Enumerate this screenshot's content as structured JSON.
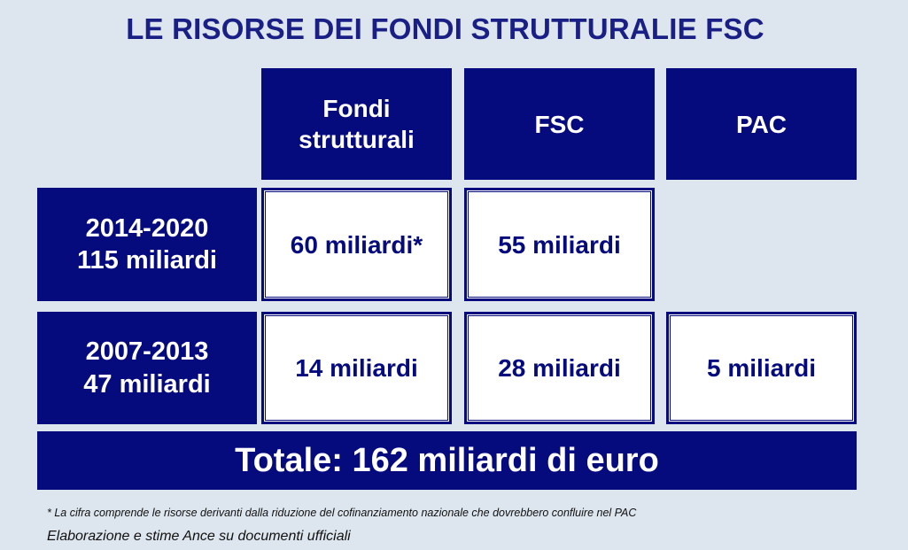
{
  "title": "LE RISORSE DEI FONDI STRUTTURALIE FSC",
  "columns": {
    "fondi_line1": "Fondi",
    "fondi_line2": "strutturali",
    "fsc": "FSC",
    "pac": "PAC"
  },
  "rows": [
    {
      "period": "2014-2020",
      "period_total": "115 miliardi",
      "fondi": "60 miliardi*",
      "fsc": "55 miliardi",
      "pac": ""
    },
    {
      "period": "2007-2013",
      "period_total": "47 miliardi",
      "fondi": "14 miliardi",
      "fsc": "28 miliardi",
      "pac": "5 miliardi"
    }
  ],
  "total": "Totale: 162 miliardi di euro",
  "footnote": "* La cifra comprende le risorse derivanti dalla riduzione del cofinanziamento nazionale che dovrebbero confluire nel PAC",
  "source": "Elaborazione e stime Ance su documenti ufficiali",
  "colors": {
    "navy": "#050a7c",
    "title": "#1a1f86",
    "background": "#dde5ee"
  }
}
